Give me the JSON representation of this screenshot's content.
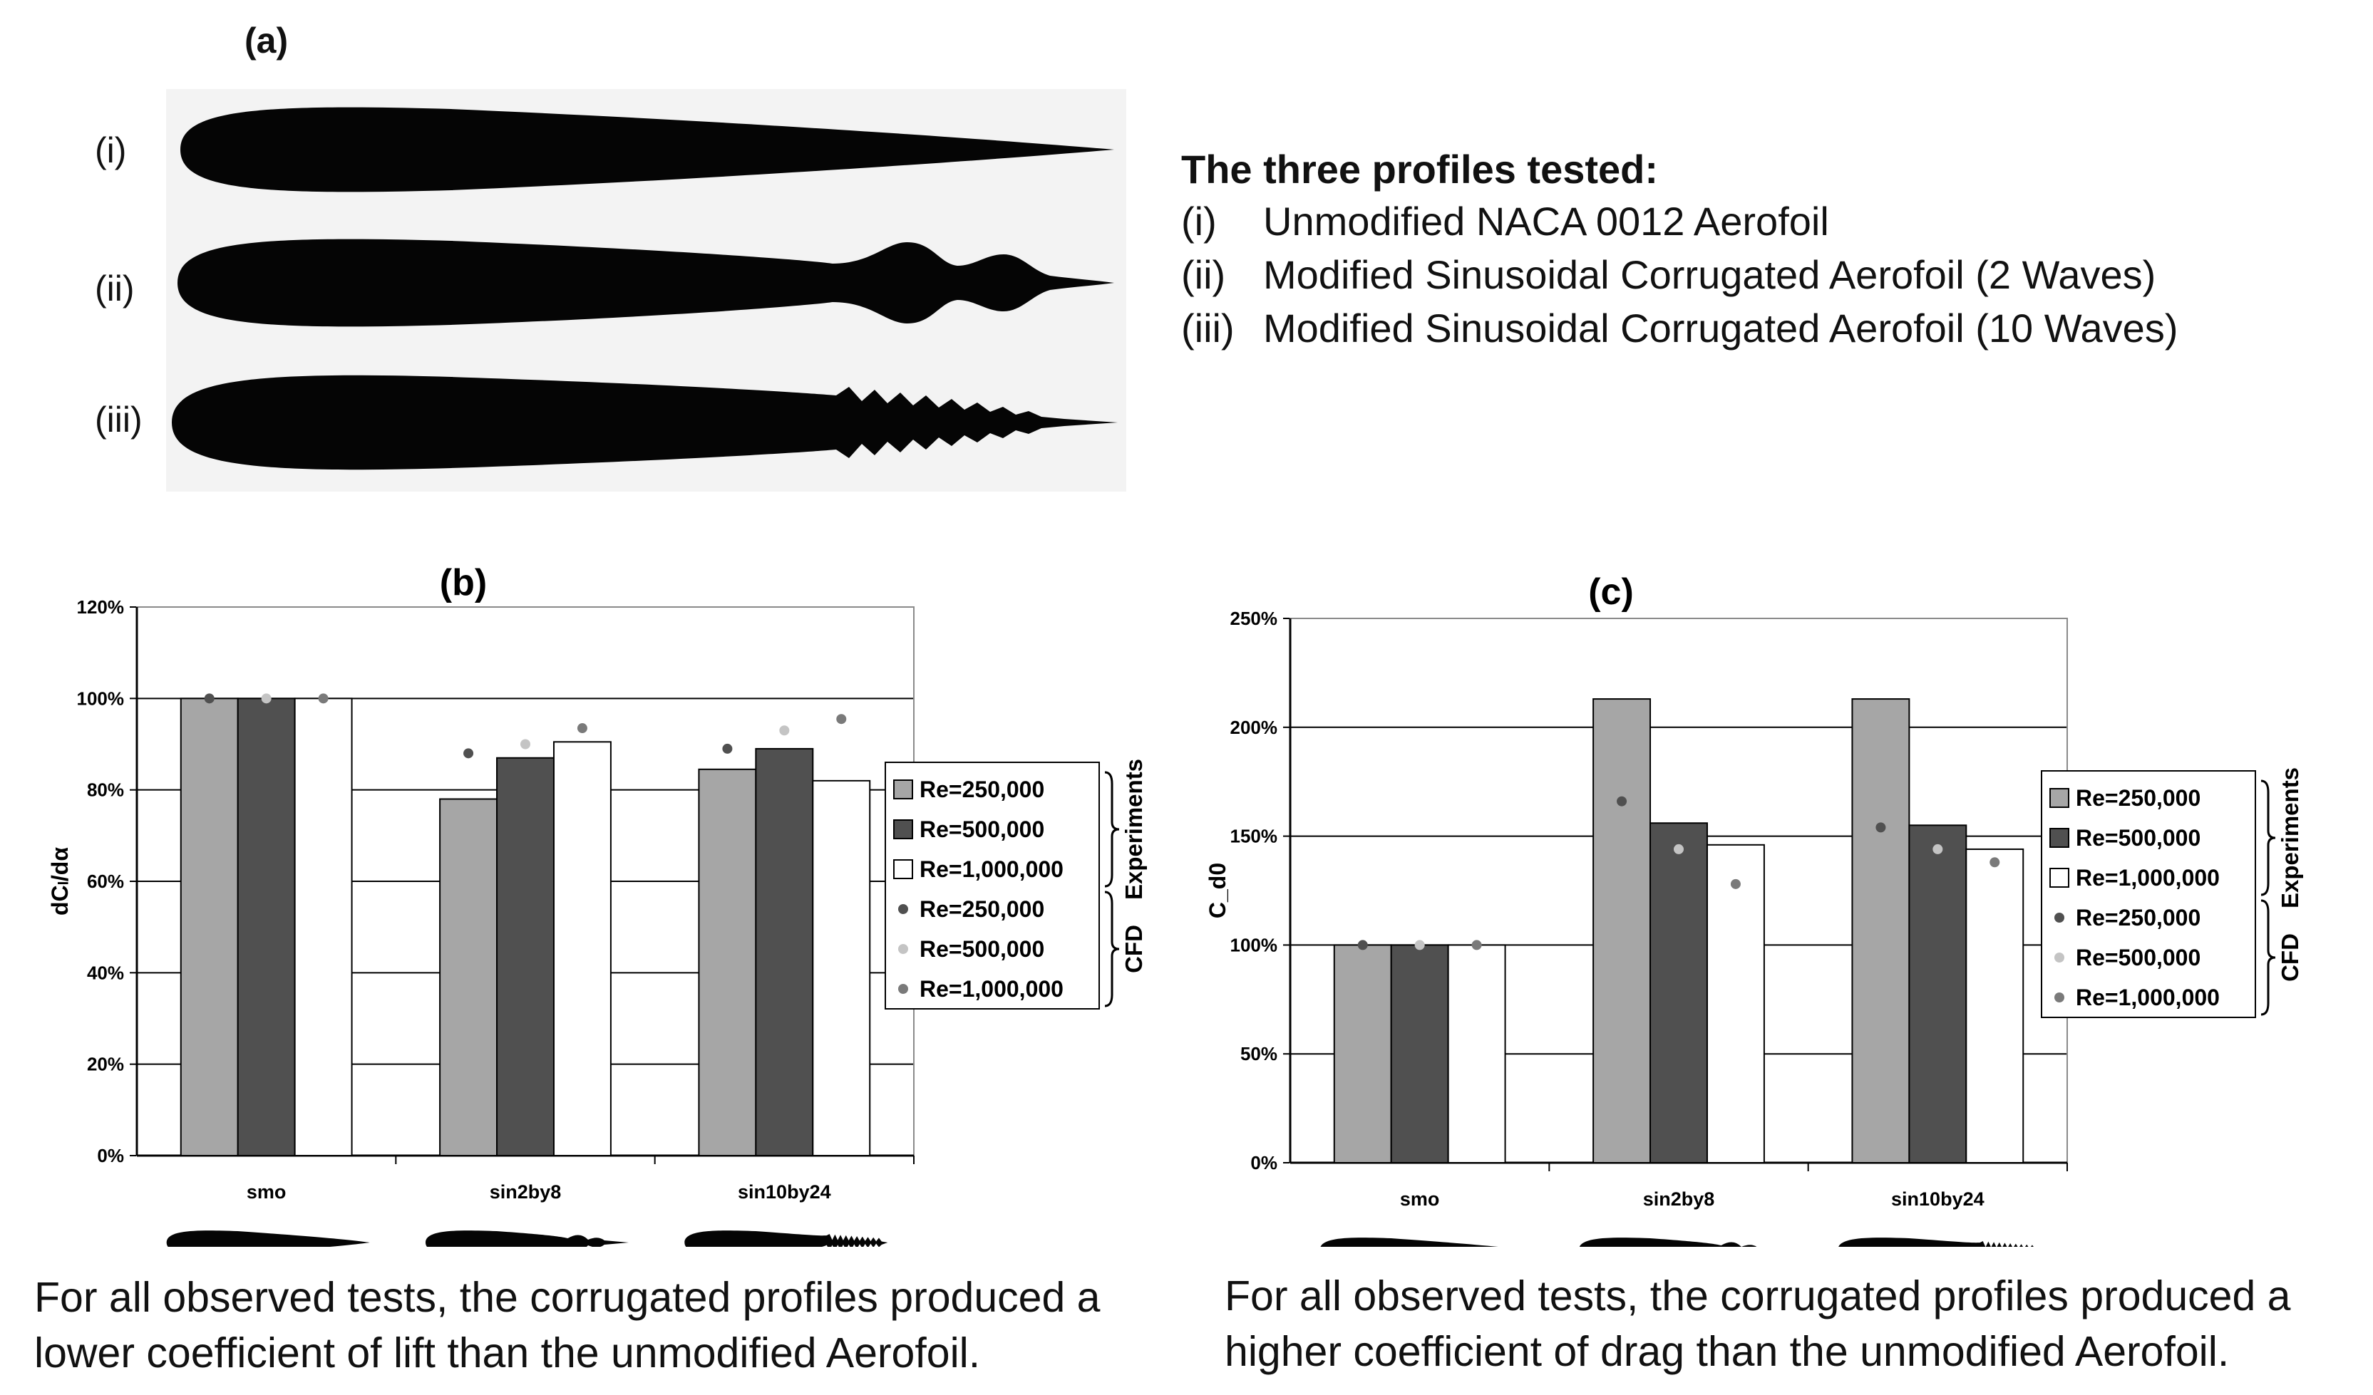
{
  "panel_a": {
    "label": "(a)",
    "profile_labels": [
      "(i)",
      "(ii)",
      "(iii)"
    ],
    "description_title": "The three profiles tested:",
    "descriptions": [
      {
        "num": "(i)",
        "text": "Unmodified NACA 0012 Aerofoil"
      },
      {
        "num": "(ii)",
        "text": "Modified Sinusoidal Corrugated Aerofoil (2 Waves)"
      },
      {
        "num": "(iii)",
        "text": "Modified Sinusoidal Corrugated Aerofoil (10 Waves)"
      }
    ]
  },
  "captions": {
    "b": "For all observed tests, the corrugated profiles produced a lower coefficient of lift than the unmodified Aerofoil.",
    "c": "For all observed tests, the corrugated profiles produced a higher coefficient of drag than the unmodified Aerofoil."
  },
  "colors": {
    "re250": "#a6a6a6",
    "re500": "#505050",
    "re1000": "#ffffff",
    "cfd250": "#505050",
    "cfd500": "#c4c4c4",
    "cfd1000": "#7a7a7a"
  },
  "chart_data": [
    {
      "type": "bar",
      "title": "(b)",
      "ylabel": "dCₗ/dα",
      "xlabel": "",
      "ylim": [
        0,
        120
      ],
      "yticks": [
        "0%",
        "20%",
        "40%",
        "60%",
        "80%",
        "100%",
        "120%"
      ],
      "categories": [
        "smo",
        "sin2by8",
        "sin10by24"
      ],
      "series": [
        {
          "name": "Re=250,000",
          "group": "Experiments",
          "kind": "bar",
          "values": [
            100,
            78,
            84.5
          ]
        },
        {
          "name": "Re=500,000",
          "group": "Experiments",
          "kind": "bar",
          "values": [
            100,
            87,
            89
          ]
        },
        {
          "name": "Re=1,000,000",
          "group": "Experiments",
          "kind": "bar",
          "values": [
            100,
            90.5,
            82
          ]
        },
        {
          "name": "Re=250,000",
          "group": "CFD",
          "kind": "point",
          "values": [
            100,
            88,
            89
          ]
        },
        {
          "name": "Re=500,000",
          "group": "CFD",
          "kind": "point",
          "values": [
            100,
            90,
            93
          ]
        },
        {
          "name": "Re=1,000,000",
          "group": "CFD",
          "kind": "point",
          "values": [
            100,
            93.5,
            95.5
          ]
        }
      ],
      "legend_groups": [
        "Experiments",
        "CFD"
      ]
    },
    {
      "type": "bar",
      "title": "(c)",
      "ylabel": "C_d0",
      "xlabel": "",
      "ylim": [
        0,
        250
      ],
      "yticks": [
        "0%",
        "50%",
        "100%",
        "150%",
        "200%",
        "250%"
      ],
      "categories": [
        "smo",
        "sin2by8",
        "sin10by24"
      ],
      "series": [
        {
          "name": "Re=250,000",
          "group": "Experiments",
          "kind": "bar",
          "values": [
            100,
            213,
            213
          ]
        },
        {
          "name": "Re=500,000",
          "group": "Experiments",
          "kind": "bar",
          "values": [
            100,
            156,
            155
          ]
        },
        {
          "name": "Re=1,000,000",
          "group": "Experiments",
          "kind": "bar",
          "values": [
            100,
            146,
            144
          ]
        },
        {
          "name": "Re=250,000",
          "group": "CFD",
          "kind": "point",
          "values": [
            100,
            166,
            154
          ]
        },
        {
          "name": "Re=500,000",
          "group": "CFD",
          "kind": "point",
          "values": [
            100,
            144,
            144
          ]
        },
        {
          "name": "Re=1,000,000",
          "group": "CFD",
          "kind": "point",
          "values": [
            100,
            128,
            138
          ]
        }
      ],
      "legend_groups": [
        "Experiments",
        "CFD"
      ]
    }
  ]
}
